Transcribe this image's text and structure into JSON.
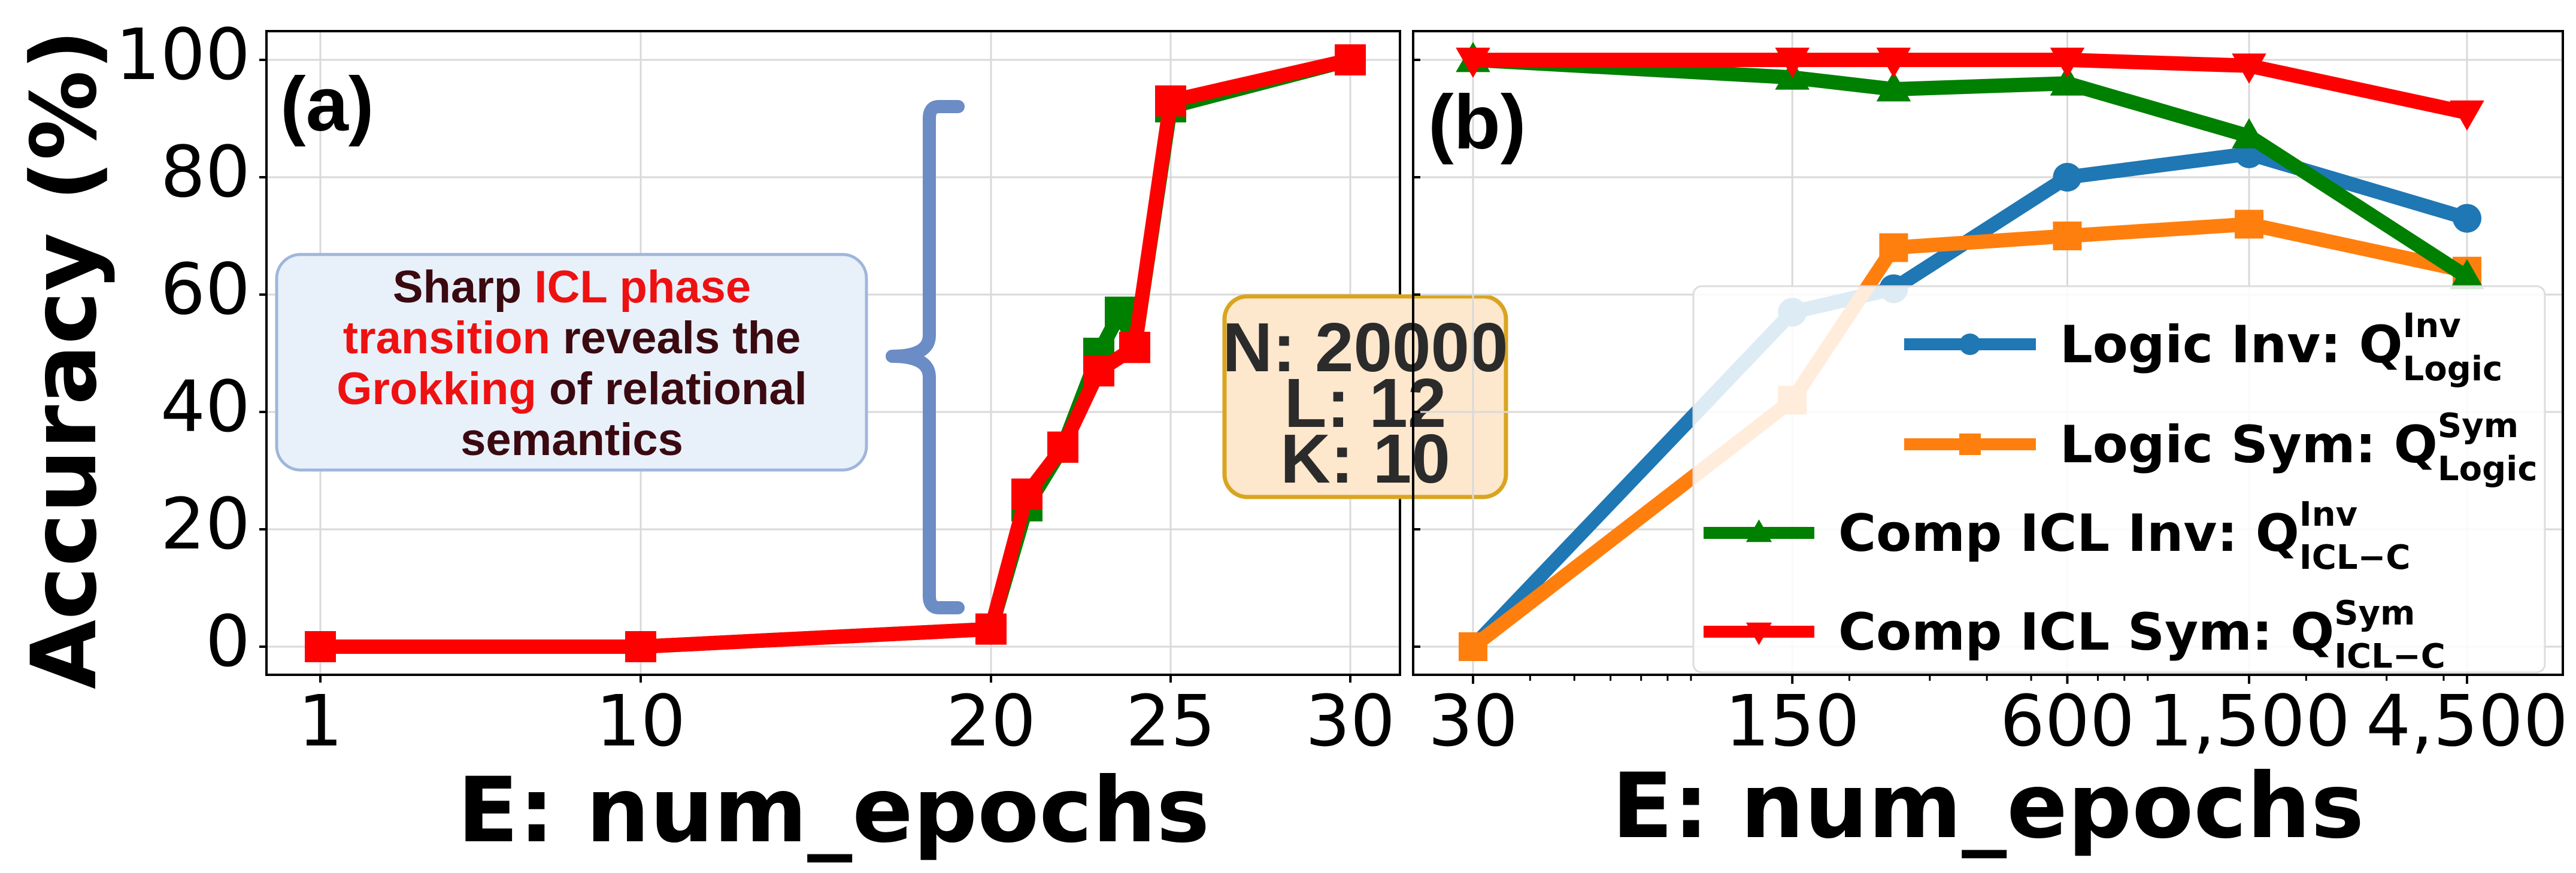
{
  "chart_data": [
    {
      "type": "line",
      "panel_label": "(a)",
      "xlabel": "E: num_epochs",
      "ylabel": "Accuracy (%)",
      "ylim": [
        0,
        100
      ],
      "yticks": [
        "0",
        "20",
        "40",
        "60",
        "80",
        "100"
      ],
      "xticks": [
        "1",
        "10",
        "20",
        "25",
        "30"
      ],
      "grid": true,
      "series": [
        {
          "color": "#008000",
          "marker": "square",
          "points": [
            [
              1,
              0
            ],
            [
              10,
              0
            ],
            [
              20,
              3
            ],
            [
              21,
              24
            ],
            [
              22,
              34
            ],
            [
              23,
              50
            ],
            [
              23.6,
              57
            ],
            [
              24,
              51
            ],
            [
              25,
              92
            ],
            [
              30,
              100
            ]
          ]
        },
        {
          "color": "#ff0000",
          "marker": "square",
          "points": [
            [
              1,
              0
            ],
            [
              10,
              0
            ],
            [
              20,
              3
            ],
            [
              21,
              26
            ],
            [
              22,
              34
            ],
            [
              23,
              47
            ],
            [
              24,
              51
            ],
            [
              25,
              93
            ],
            [
              30,
              100
            ]
          ]
        }
      ],
      "annotation": {
        "parts": [
          {
            "text": "Sharp ",
            "highlight": false
          },
          {
            "text": "ICL phase",
            "highlight": true
          },
          {
            "text": "transition",
            "highlight": true
          },
          {
            "text": " reveals the",
            "highlight": false
          },
          {
            "text": "Grokking",
            "highlight": true
          },
          {
            "text": " of relational",
            "highlight": false
          },
          {
            "text": "semantics",
            "highlight": false
          }
        ],
        "box_color": "#e8f0fa",
        "brace_color": "#6b8cc4"
      },
      "info_box": {
        "lines": [
          "N: 20000",
          "L: 12",
          "K: 10"
        ],
        "fill": "#fde7cd",
        "border": "#d9a520"
      }
    },
    {
      "type": "line",
      "panel_label": "(b)",
      "xlabel": "E: num_epochs",
      "xscale": "log",
      "ylim": [
        0,
        100
      ],
      "xticks": [
        "30",
        "150",
        "600",
        "1,500",
        "4,500"
      ],
      "grid": true,
      "legend_position": "lower-right",
      "series": [
        {
          "name": "Logic Inv: ",
          "q": "Q",
          "sup": "Inv",
          "sub": "Logic",
          "color": "#1f77b4",
          "marker": "circle",
          "points": [
            [
              30,
              0
            ],
            [
              150,
              57
            ],
            [
              250,
              61
            ],
            [
              600,
              80
            ],
            [
              1500,
              84
            ],
            [
              4500,
              73
            ]
          ]
        },
        {
          "name": "Logic Sym: ",
          "q": "Q",
          "sup": "Sym",
          "sub": "Logic",
          "color": "#ff7f0e",
          "marker": "square",
          "points": [
            [
              30,
              0
            ],
            [
              150,
              42
            ],
            [
              250,
              68
            ],
            [
              600,
              70
            ],
            [
              1500,
              72
            ],
            [
              4500,
              64
            ]
          ]
        },
        {
          "name": "Comp ICL Inv: ",
          "q": "Q",
          "sup": "Inv",
          "sub": "ICL−C",
          "color": "#008000",
          "marker": "triangle-up",
          "points": [
            [
              30,
              100
            ],
            [
              150,
              97
            ],
            [
              250,
              95
            ],
            [
              600,
              96
            ],
            [
              1500,
              87
            ],
            [
              4500,
              63
            ]
          ]
        },
        {
          "name": "Comp ICL Sym: ",
          "q": "Q",
          "sup": "Sym",
          "sub": "ICL−C",
          "color": "#ff0000",
          "marker": "triangle-down",
          "points": [
            [
              30,
              100
            ],
            [
              150,
              100
            ],
            [
              250,
              100
            ],
            [
              600,
              100
            ],
            [
              1500,
              99
            ],
            [
              4500,
              91
            ]
          ]
        }
      ]
    }
  ]
}
